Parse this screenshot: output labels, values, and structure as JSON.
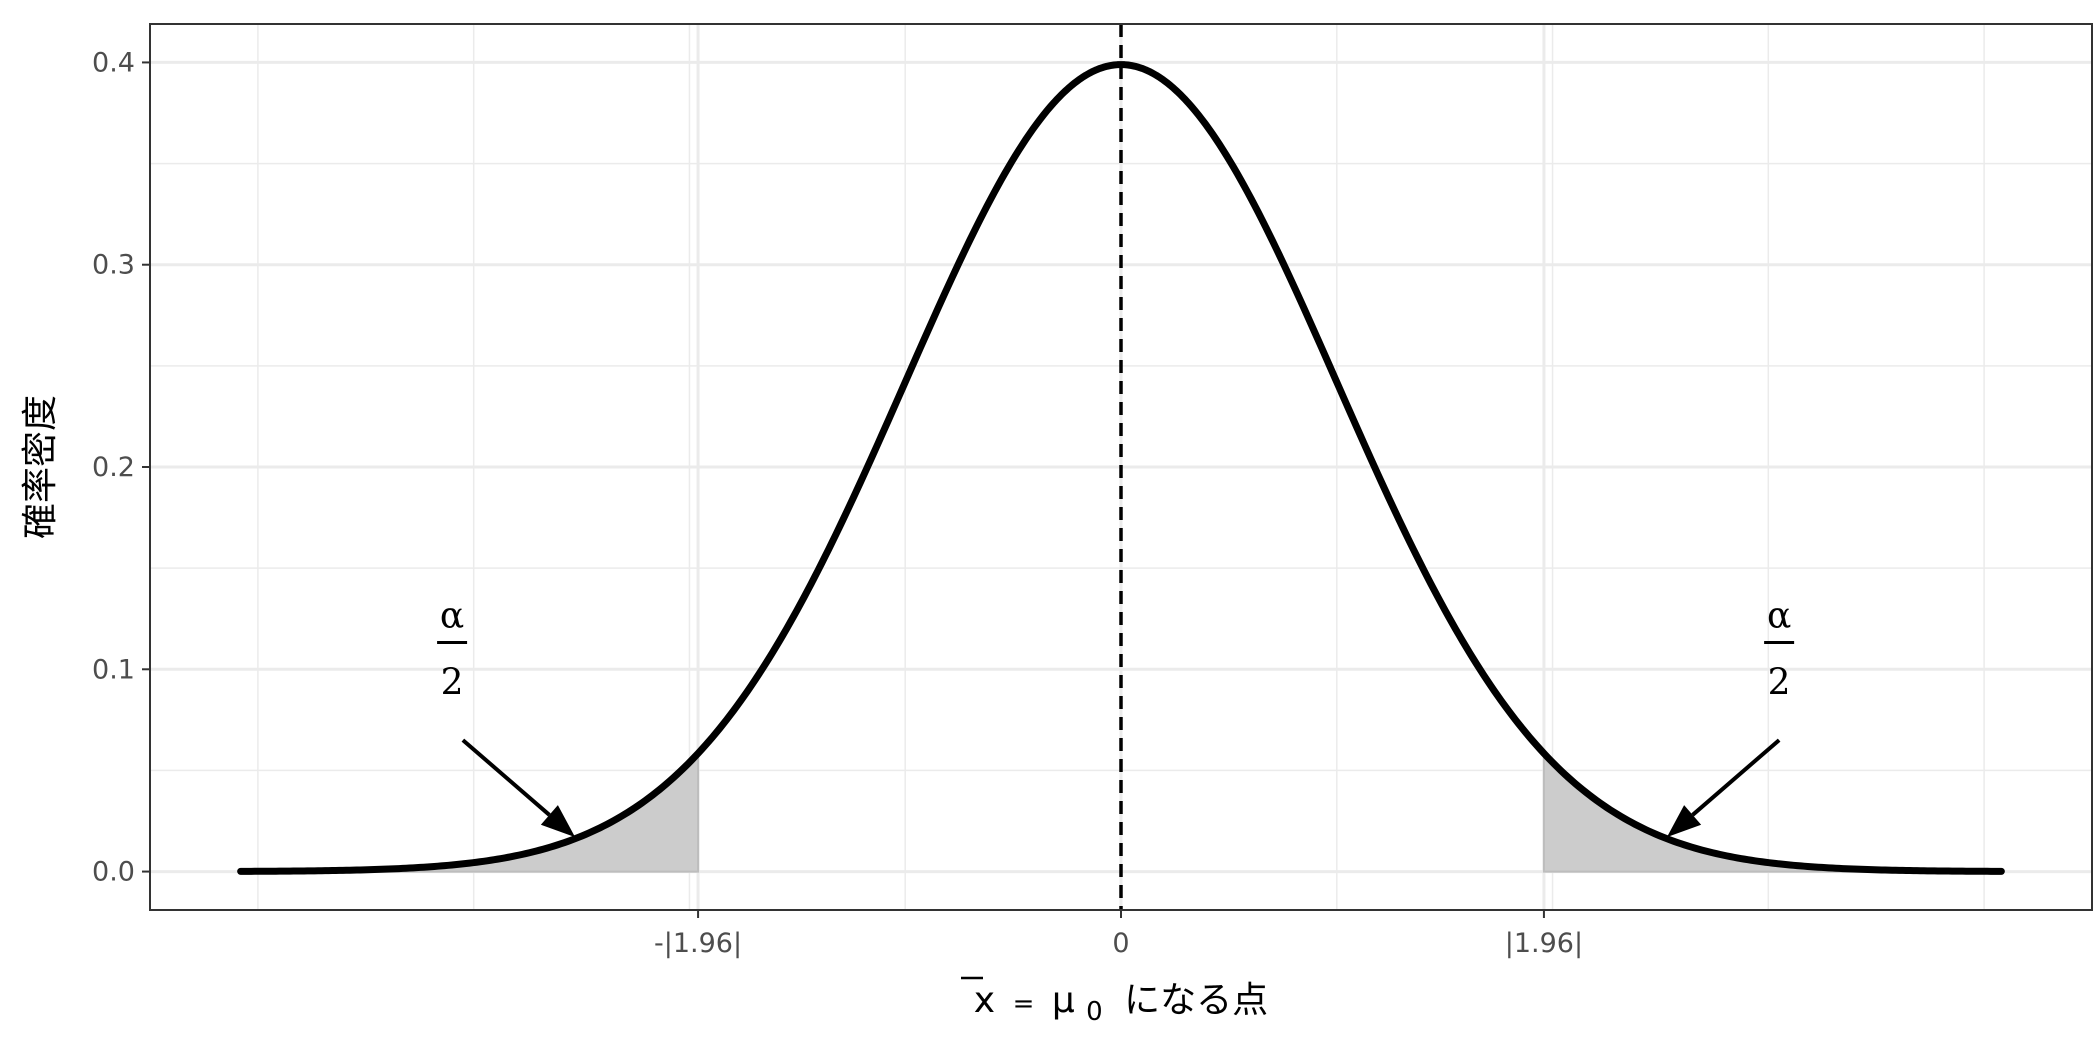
{
  "chart_data": {
    "type": "line",
    "title": "",
    "xlabel": {
      "prefix": "x",
      "equals": "=",
      "mu": "μ",
      "mu_sub": "0",
      "suffix": "になる点"
    },
    "ylabel": "確率密度",
    "xlim": [
      -4.5,
      4.5
    ],
    "ylim": [
      -0.019,
      0.419
    ],
    "grid": true,
    "legend": "none",
    "x_ticks": [
      {
        "value": -1.96,
        "label": "-|1.96|"
      },
      {
        "value": 0,
        "label": "0"
      },
      {
        "value": 1.96,
        "label": "|1.96|"
      }
    ],
    "x_minor_ticks": [
      -4,
      -3,
      -2,
      -1,
      1,
      2,
      3,
      4
    ],
    "y_ticks": [
      {
        "value": 0.0,
        "label": "0.0"
      },
      {
        "value": 0.1,
        "label": "0.1"
      },
      {
        "value": 0.2,
        "label": "0.2"
      },
      {
        "value": 0.3,
        "label": "0.3"
      },
      {
        "value": 0.4,
        "label": "0.4"
      }
    ],
    "y_minor_ticks": [
      0.05,
      0.15,
      0.25,
      0.35
    ],
    "series": [
      {
        "distribution": "standard normal density",
        "mean": 0,
        "sd": 1,
        "x_range": [
          -4.08,
          4.08
        ],
        "color": "#000000"
      }
    ],
    "shaded_regions": [
      {
        "from": -4.08,
        "to": -1.96,
        "color": "#cccccc"
      },
      {
        "from": 1.96,
        "to": 4.08,
        "color": "#cccccc"
      }
    ],
    "vline": {
      "x": 0,
      "style": "dashed",
      "color": "#000000"
    },
    "annotations": [
      {
        "numerator": "α",
        "denominator": "2",
        "label_x": -3.1,
        "label_y": 0.09,
        "arrow_from": [
          -3.05,
          0.065
        ],
        "arrow_to": [
          -2.53,
          0.017
        ]
      },
      {
        "numerator": "α",
        "denominator": "2",
        "label_x": 3.05,
        "label_y": 0.09,
        "arrow_from": [
          3.05,
          0.065
        ],
        "arrow_to": [
          2.53,
          0.017
        ]
      }
    ]
  }
}
